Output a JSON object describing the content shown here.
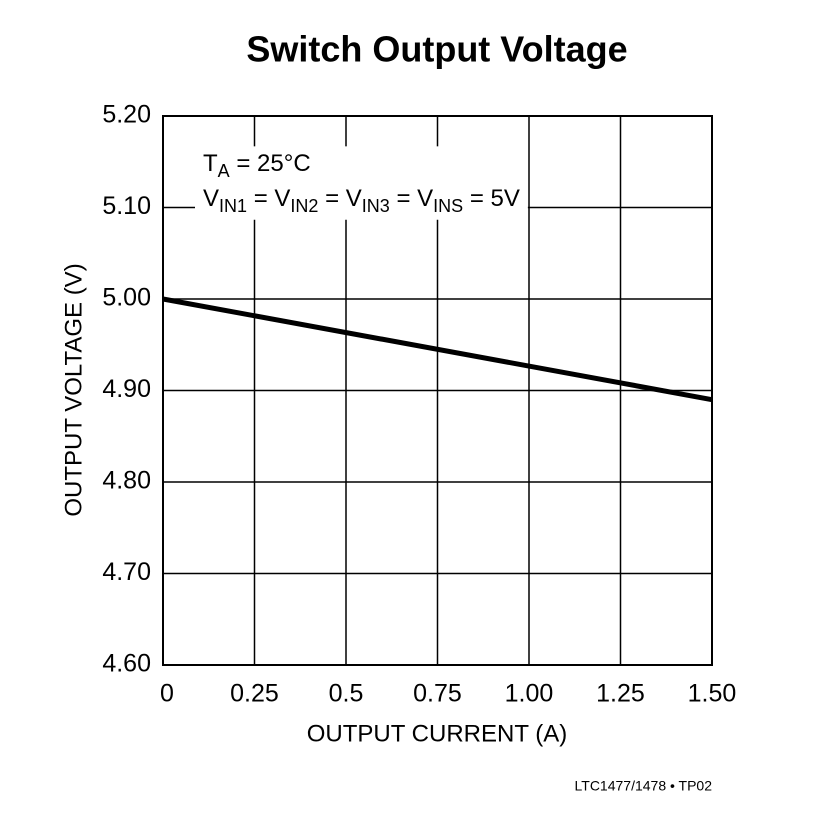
{
  "chart_data": {
    "type": "line",
    "title": "Switch Output Voltage",
    "x_label": "OUTPUT CURRENT (A)",
    "y_label": "OUTPUT VOLTAGE (V)",
    "footnote": "LTC1477/1478 • TP02",
    "annotations": [
      [
        "T",
        "A",
        " = 25°C"
      ],
      [
        "V",
        "IN1",
        " = V",
        "IN2",
        " = V",
        "IN3",
        " = V",
        "INS",
        " = 5V"
      ]
    ],
    "x": [
      0,
      1.5
    ],
    "series": [
      {
        "name": "Output Voltage",
        "color": "#000000",
        "values": [
          5.0,
          4.89
        ]
      }
    ],
    "xlim": [
      0,
      1.5
    ],
    "xticks": [
      0,
      0.25,
      0.5,
      0.75,
      {
        "value": 1,
        "label": "1.00"
      },
      1.25,
      {
        "value": 1.5,
        "label": "1.50"
      }
    ],
    "ylim": [
      4.6,
      5.2
    ],
    "yticks": [
      {
        "value": 4.6,
        "label": "4.60"
      },
      {
        "value": 4.7,
        "label": "4.70"
      },
      {
        "value": 4.8,
        "label": "4.80"
      },
      {
        "value": 4.9,
        "label": "4.90"
      },
      {
        "value": 5.0,
        "label": "5.00"
      },
      {
        "value": 5.1,
        "label": "5.10"
      },
      {
        "value": 5.2,
        "label": "5.20"
      }
    ],
    "grid": true
  }
}
